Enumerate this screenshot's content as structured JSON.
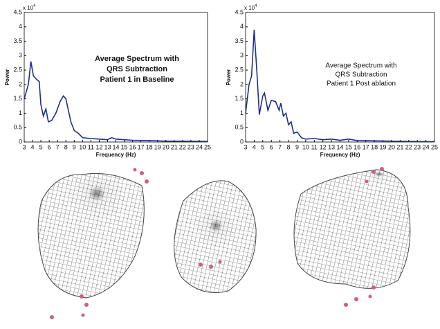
{
  "chart_data": [
    {
      "type": "line",
      "ylabel": "Power",
      "xlabel": "Frequency (Hz)",
      "y_scale": {
        "base": "x 10",
        "exponent": "4"
      },
      "annotation": [
        "Average Spectrum with",
        "QRS Subtraction",
        "Patient 1 in Baseline"
      ],
      "annotation_bold": true,
      "color": "#1f2d8a",
      "x": [
        3,
        3.5,
        3.8,
        4.1,
        4.4,
        4.8,
        5.0,
        5.3,
        5.6,
        5.9,
        6.3,
        6.8,
        7.3,
        7.7,
        8.0,
        8.3,
        8.6,
        9,
        9.5,
        10,
        11,
        12,
        13,
        13.5,
        14,
        15,
        16,
        18,
        20,
        22,
        25
      ],
      "values": [
        1.5,
        2.0,
        2.8,
        2.3,
        2.2,
        2.1,
        1.3,
        0.9,
        1.15,
        0.7,
        0.75,
        1.0,
        1.4,
        1.6,
        1.5,
        1.1,
        0.7,
        0.4,
        0.3,
        0.15,
        0.12,
        0.1,
        0.08,
        0.15,
        0.1,
        0.08,
        0.06,
        0.05,
        0.03,
        0.03,
        0.02
      ],
      "xlim": [
        3,
        25
      ],
      "xticks": [
        3,
        4,
        5,
        6,
        7,
        8,
        9,
        10,
        11,
        12,
        13,
        14,
        15,
        16,
        17,
        18,
        19,
        20,
        21,
        22,
        23,
        24,
        25
      ],
      "ylim": [
        0,
        4.5
      ],
      "yticks": [
        0,
        0.5,
        1,
        1.5,
        2,
        2.5,
        3,
        3.5,
        4,
        4.5
      ],
      "grid": false
    },
    {
      "type": "line",
      "ylabel": "Power",
      "xlabel": "Frequency (Hz)",
      "y_scale": {
        "base": "x 10",
        "exponent": "4"
      },
      "annotation": [
        "Average Spectrum with",
        "QRS Subtraction",
        "Patient 1 Post ablation"
      ],
      "annotation_bold": false,
      "color": "#1f2d8a",
      "x": [
        3,
        3.4,
        3.7,
        4.0,
        4.3,
        4.6,
        5.0,
        5.2,
        5.6,
        6.0,
        6.5,
        6.9,
        7.1,
        7.4,
        7.7,
        8.0,
        8.3,
        8.6,
        9,
        9.5,
        10,
        11,
        12,
        13,
        14,
        15,
        16,
        18,
        20,
        22,
        25
      ],
      "values": [
        1.0,
        2.0,
        2.3,
        3.9,
        2.5,
        0.95,
        1.6,
        1.7,
        1.1,
        1.45,
        1.4,
        1.1,
        1.35,
        0.9,
        1.0,
        0.6,
        0.7,
        0.3,
        0.35,
        0.15,
        0.1,
        0.12,
        0.08,
        0.1,
        0.06,
        0.1,
        0.05,
        0.04,
        0.03,
        0.02,
        0.01
      ],
      "xlim": [
        3,
        25
      ],
      "xticks": [
        3,
        4,
        5,
        6,
        7,
        8,
        9,
        10,
        11,
        12,
        13,
        14,
        15,
        16,
        17,
        18,
        19,
        20,
        21,
        22,
        23,
        24,
        25
      ],
      "ylim": [
        0,
        4.5
      ],
      "yticks": [
        0,
        0.5,
        1,
        1.5,
        2,
        2.5,
        3,
        3.5,
        4,
        4.5
      ],
      "grid": false
    }
  ]
}
